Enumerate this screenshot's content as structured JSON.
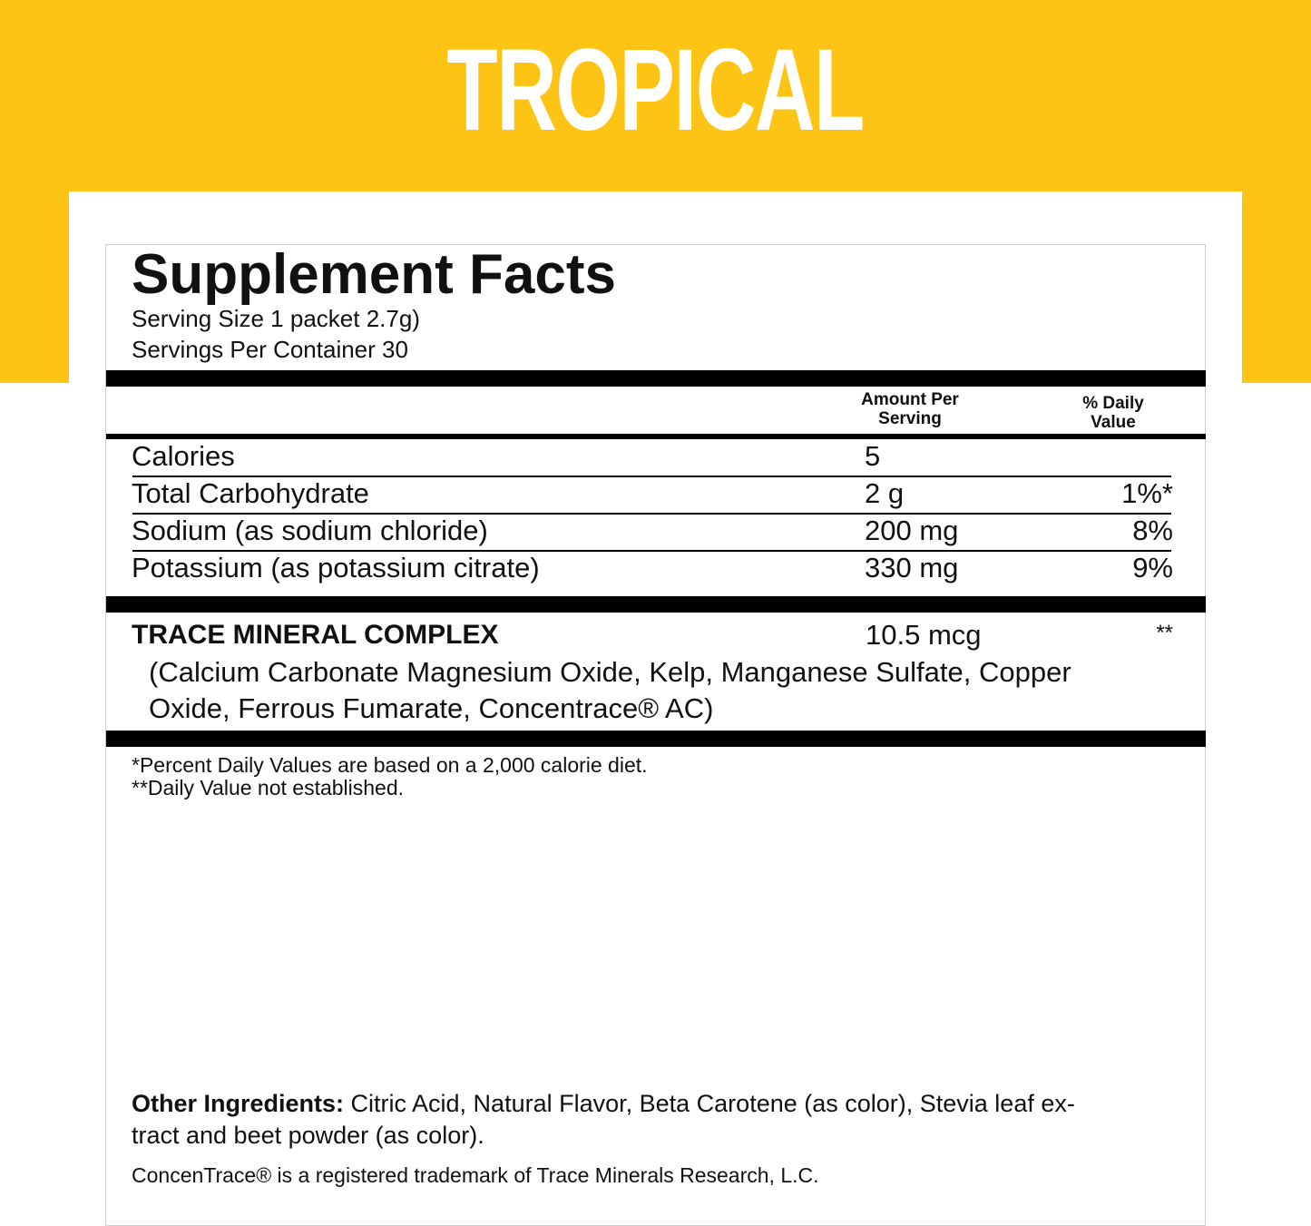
{
  "banner": {
    "flavor": "TROPICAL",
    "color": "#FDC415"
  },
  "facts": {
    "title": "Supplement Facts",
    "serving_size": "Serving Size 1 packet 2.7g)",
    "servings_per_container": "Servings Per Container 30",
    "col_amount": [
      "Amount Per",
      "Serving"
    ],
    "col_dv": [
      "% Daily",
      "Value"
    ],
    "rows": [
      {
        "name": "Calories",
        "amount": "5",
        "dv": ""
      },
      {
        "name": "Total Carbohydrate",
        "amount": "2 g",
        "dv": "1%*"
      },
      {
        "name": "Sodium (as sodium chloride)",
        "amount": "200 mg",
        "dv": "8%"
      },
      {
        "name": "Potassium (as potassium citrate)",
        "amount": "330 mg",
        "dv": "9%"
      }
    ],
    "complex": {
      "name": "TRACE MINERAL COMPLEX",
      "amount": "10.5 mcg",
      "dv": "**",
      "detail1": "(Calcium Carbonate Magnesium Oxide, Kelp, Manganese Sulfate, Copper",
      "detail2": "Oxide, Ferrous Fumarate, Concentrace® AC)"
    },
    "footnote1": "*Percent Daily Values are based on a 2,000 calorie diet.",
    "footnote2": "**Daily Value not established.",
    "other_label": "Other Ingredients:",
    "other_text1": " Citric Acid, Natural Flavor, Beta Carotene (as color), Stevia leaf ex-",
    "other_text2": "tract and beet powder (as color).",
    "trademark": "ConcenTrace® is a registered trademark of Trace Minerals Research, L.C."
  }
}
